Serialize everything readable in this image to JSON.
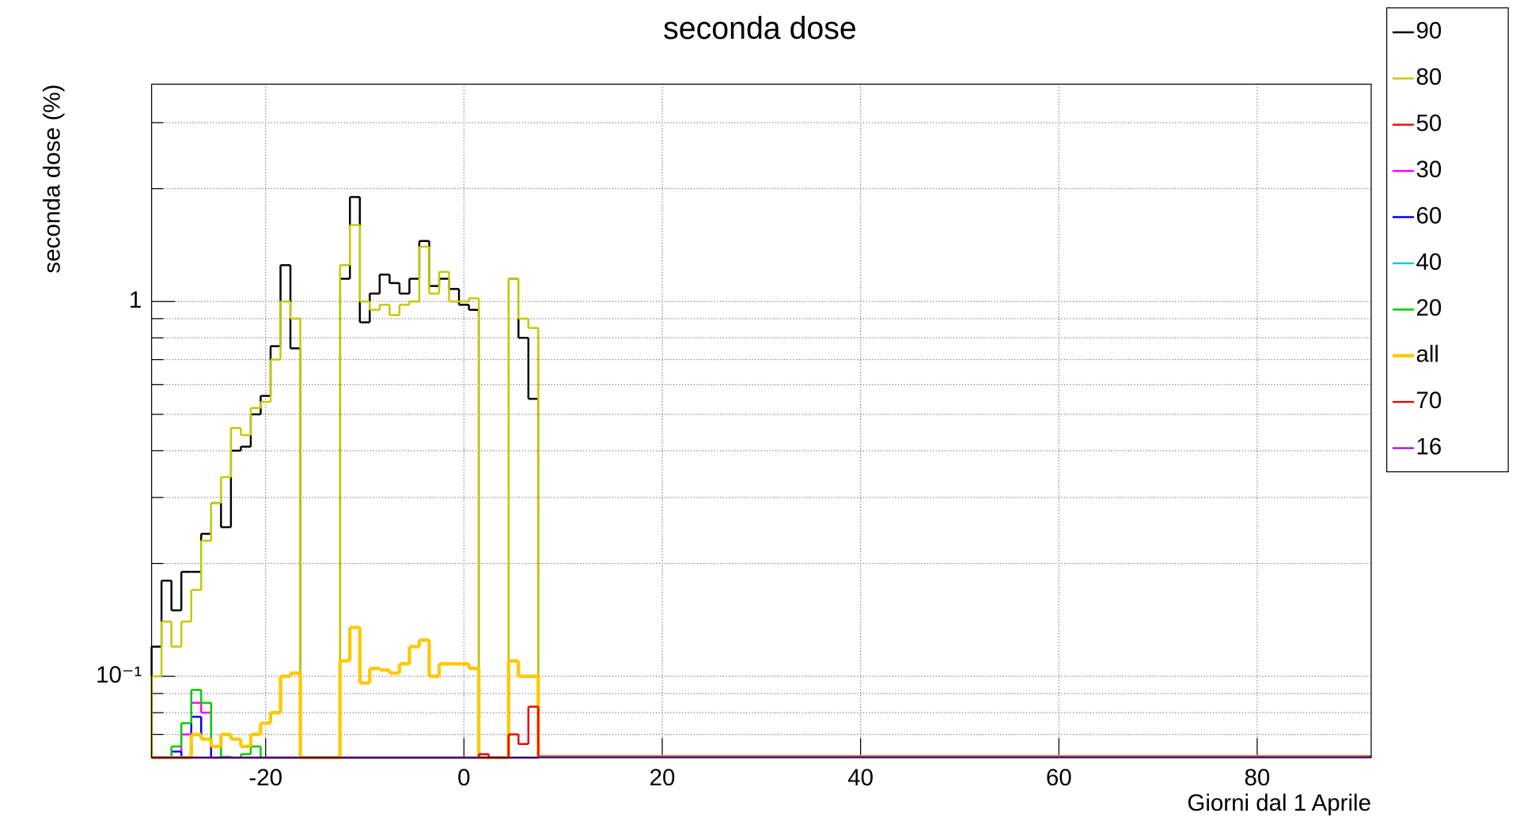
{
  "chart_data": {
    "type": "histogram",
    "title": "seconda dose",
    "x_label": "Giorni dal 1 Aprile",
    "y_label": "seconda dose (%)",
    "log_y": true,
    "grid": true,
    "xlim": [
      -31.5,
      91.5
    ],
    "xticks": [
      -20,
      0,
      20,
      40,
      60,
      80
    ],
    "ylim": [
      0.0607,
      3.8
    ],
    "yticks": [
      {
        "value": 0.1,
        "label": "10⁻¹"
      },
      1
    ],
    "yminorticks": [
      0.07,
      0.08,
      0.09,
      0.2,
      0.3,
      0.4,
      0.5,
      0.6,
      0.7,
      0.8,
      0.9,
      2,
      3
    ],
    "bins": [
      -31.5,
      -30.5,
      -29.5,
      -28.5,
      -27.5,
      -26.5,
      -25.5,
      -24.5,
      -23.5,
      -22.5,
      -21.5,
      -20.5,
      -19.5,
      -18.5,
      -17.5,
      -16.5,
      -15.5,
      -14.5,
      -13.5,
      -12.5,
      -11.5,
      -10.5,
      -9.5,
      -8.5,
      -7.5,
      -6.5,
      -5.5,
      -4.5,
      -3.5,
      -2.5,
      -1.5,
      -0.5,
      0.5,
      1.5,
      2.5,
      3.5,
      4.5,
      5.5,
      6.5,
      7.5
    ],
    "series": [
      {
        "name": "90",
        "color": "#000000",
        "values": [
          0.12,
          0.18,
          0.15,
          0.19,
          0.19,
          0.24,
          0.29,
          0.25,
          0.4,
          0.41,
          0.5,
          0.56,
          0.76,
          1.25,
          0.75,
          0,
          0,
          0,
          0,
          1.15,
          1.9,
          0.88,
          1.05,
          1.18,
          1.12,
          1.05,
          1.15,
          1.45,
          1.1,
          1.15,
          1.08,
          0.98,
          0.95,
          0,
          0,
          0,
          1.15,
          0.8,
          0.55
        ]
      },
      {
        "name": "80",
        "color": "#c8c800",
        "values": [
          0.1,
          0.14,
          0.12,
          0.14,
          0.17,
          0.23,
          0.29,
          0.34,
          0.46,
          0.44,
          0.52,
          0.54,
          0.7,
          1.0,
          0.9,
          0,
          0,
          0,
          0,
          1.25,
          1.6,
          1.0,
          0.95,
          0.98,
          0.92,
          0.98,
          1.0,
          1.4,
          1.05,
          1.2,
          1.0,
          1.0,
          1.02,
          0,
          0,
          0,
          1.15,
          0.9,
          0.85
        ]
      },
      {
        "name": "50",
        "color": "#ff0000",
        "values": [
          0,
          0,
          0,
          0,
          0,
          0,
          0,
          0,
          0,
          0,
          0,
          0,
          0,
          0,
          0,
          0,
          0,
          0,
          0,
          0,
          0,
          0,
          0,
          0,
          0,
          0,
          0,
          0,
          0,
          0,
          0,
          0,
          0,
          0,
          0,
          0,
          0,
          0,
          0
        ]
      },
      {
        "name": "30",
        "color": "#ff00ff",
        "values": [
          0,
          0,
          0,
          0.07,
          0.085,
          0.08,
          0,
          0,
          0,
          0,
          0,
          0,
          0,
          0,
          0,
          0,
          0,
          0,
          0,
          0,
          0,
          0,
          0,
          0,
          0,
          0,
          0,
          0,
          0,
          0,
          0,
          0,
          0,
          0,
          0,
          0,
          0,
          0,
          0
        ]
      },
      {
        "name": "60",
        "color": "#0000ff",
        "values": [
          0,
          0,
          0.063,
          0,
          0.078,
          0.068,
          0,
          0,
          0,
          0,
          0,
          0,
          0,
          0,
          0,
          0,
          0,
          0,
          0,
          0,
          0,
          0,
          0,
          0,
          0,
          0,
          0,
          0,
          0,
          0,
          0,
          0,
          0,
          0,
          0,
          0,
          0,
          0,
          0
        ]
      },
      {
        "name": "40",
        "color": "#00cccc",
        "values": [
          0,
          0,
          0,
          0,
          0,
          0,
          0,
          0,
          0,
          0,
          0,
          0,
          0,
          0,
          0,
          0,
          0,
          0,
          0,
          0,
          0,
          0,
          0,
          0,
          0,
          0,
          0,
          0,
          0,
          0,
          0,
          0,
          0,
          0,
          0,
          0,
          0,
          0,
          0
        ]
      },
      {
        "name": "20",
        "color": "#00cc00",
        "values": [
          0,
          0,
          0.065,
          0.075,
          0.092,
          0.085,
          0.065,
          0.061,
          0,
          0.062,
          0.065,
          0,
          0,
          0,
          0,
          0,
          0,
          0,
          0,
          0,
          0,
          0,
          0,
          0,
          0,
          0,
          0,
          0,
          0,
          0,
          0,
          0,
          0,
          0,
          0,
          0,
          0,
          0,
          0
        ]
      },
      {
        "name": "all",
        "color": "#ffc800",
        "values": [
          0,
          0,
          0,
          0,
          0.07,
          0.068,
          0.065,
          0.07,
          0.068,
          0.065,
          0.07,
          0.075,
          0.08,
          0.1,
          0.102,
          0,
          0,
          0,
          0,
          0.11,
          0.135,
          0.096,
          0.105,
          0.104,
          0.102,
          0.108,
          0.12,
          0.125,
          0.1,
          0.108,
          0.108,
          0.108,
          0.105,
          0,
          0,
          0,
          0.11,
          0.1,
          0.1
        ]
      },
      {
        "name": "70",
        "color": "#ee0000",
        "values": [
          0,
          0,
          0,
          0,
          0,
          0,
          0,
          0,
          0,
          0,
          0,
          0,
          0,
          0,
          0,
          0,
          0,
          0,
          0,
          0,
          0,
          0,
          0,
          0,
          0,
          0,
          0,
          0,
          0,
          0,
          0,
          0,
          0,
          0.062,
          0,
          0,
          0.07,
          0.066,
          0.083
        ]
      },
      {
        "name": "16",
        "color": "#a020f0",
        "values": [
          0,
          0,
          0,
          0,
          0,
          0,
          0,
          0,
          0,
          0,
          0,
          0,
          0,
          0,
          0,
          0,
          0,
          0,
          0,
          0,
          0,
          0,
          0,
          0,
          0,
          0,
          0,
          0,
          0,
          0,
          0,
          0,
          0,
          0,
          0,
          0,
          0,
          0,
          0
        ]
      }
    ]
  }
}
